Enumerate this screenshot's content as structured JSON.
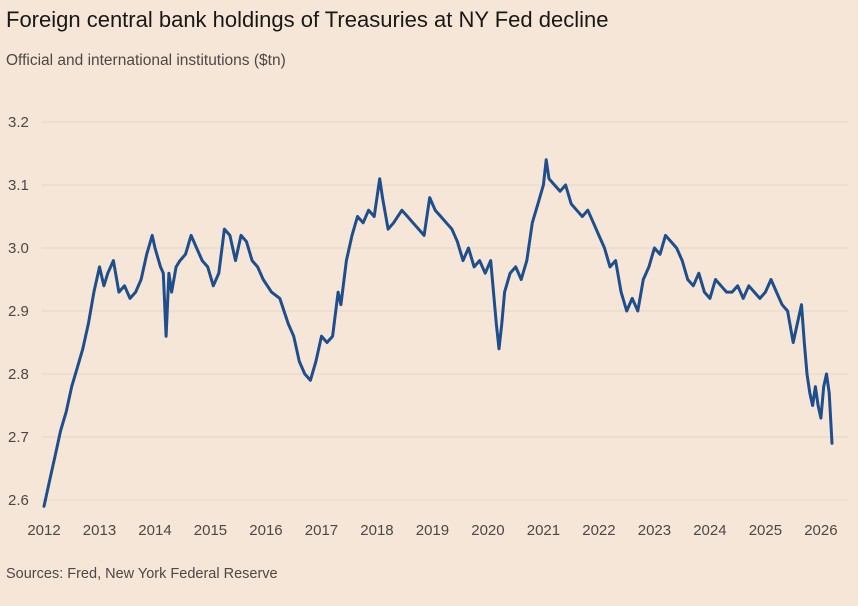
{
  "title": "Foreign central bank holdings of Treasuries at NY Fed decline",
  "subtitle": "Official and international institutions ($tn)",
  "source": "Sources: Fred, New York Federal Reserve",
  "colors": {
    "background": "#f5e6d8",
    "line": "#1f4e8c",
    "gridline": "#e6d5c6"
  },
  "chart_data": {
    "type": "line",
    "title": "Foreign central bank holdings of Treasuries at NY Fed decline",
    "ylabel": "Official and international institutions ($tn)",
    "xlabel": "",
    "ylim": [
      2.6,
      3.2
    ],
    "xlim": [
      2012.0,
      2026.2
    ],
    "yticks": [
      2.6,
      2.7,
      2.8,
      2.9,
      3.0,
      3.1,
      3.2
    ],
    "ytick_labels": [
      "2.6",
      "2.7",
      "2.8",
      "2.9",
      "3.0",
      "3.1",
      "3.2"
    ],
    "xticks": [
      2012,
      2013,
      2014,
      2015,
      2016,
      2017,
      2018,
      2019,
      2020,
      2021,
      2022,
      2023,
      2024,
      2025,
      2026
    ],
    "xtick_labels": [
      "2012",
      "2013",
      "2014",
      "2015",
      "2016",
      "2017",
      "2018",
      "2019",
      "2020",
      "2021",
      "2022",
      "2023",
      "2024",
      "2025",
      "2026"
    ],
    "grid": "horizontal",
    "legend": "none",
    "series": [
      {
        "x": [
          2012.0,
          2012.1,
          2012.2,
          2012.3,
          2012.4,
          2012.5,
          2012.6,
          2012.7,
          2012.8,
          2012.9,
          2013.0,
          2013.08,
          2013.15,
          2013.25,
          2013.35,
          2013.45,
          2013.55,
          2013.65,
          2013.75,
          2013.85,
          2013.95,
          2014.0,
          2014.1,
          2014.15,
          2014.2,
          2014.25,
          2014.3,
          2014.38,
          2014.45,
          2014.55,
          2014.65,
          2014.75,
          2014.85,
          2014.95,
          2015.05,
          2015.15,
          2015.25,
          2015.35,
          2015.45,
          2015.55,
          2015.65,
          2015.75,
          2015.85,
          2015.95,
          2016.1,
          2016.25,
          2016.4,
          2016.5,
          2016.6,
          2016.7,
          2016.8,
          2016.9,
          2017.0,
          2017.1,
          2017.2,
          2017.3,
          2017.35,
          2017.45,
          2017.55,
          2017.65,
          2017.75,
          2017.85,
          2017.95,
          2018.05,
          2018.1,
          2018.2,
          2018.3,
          2018.45,
          2018.55,
          2018.65,
          2018.75,
          2018.85,
          2018.95,
          2019.05,
          2019.15,
          2019.25,
          2019.35,
          2019.45,
          2019.55,
          2019.65,
          2019.75,
          2019.85,
          2019.95,
          2020.05,
          2020.15,
          2020.2,
          2020.25,
          2020.3,
          2020.4,
          2020.5,
          2020.6,
          2020.7,
          2020.8,
          2020.9,
          2021.0,
          2021.05,
          2021.1,
          2021.2,
          2021.3,
          2021.4,
          2021.5,
          2021.6,
          2021.7,
          2021.8,
          2021.9,
          2022.0,
          2022.1,
          2022.2,
          2022.3,
          2022.4,
          2022.5,
          2022.6,
          2022.7,
          2022.8,
          2022.9,
          2023.0,
          2023.1,
          2023.2,
          2023.3,
          2023.4,
          2023.5,
          2023.6,
          2023.7,
          2023.8,
          2023.9,
          2024.0,
          2024.1,
          2024.2,
          2024.3,
          2024.4,
          2024.5,
          2024.6,
          2024.7,
          2024.8,
          2024.9,
          2025.0,
          2025.1,
          2025.2,
          2025.3,
          2025.4,
          2025.5,
          2025.6,
          2025.65,
          2025.7,
          2025.75,
          2025.8,
          2025.85,
          2025.9,
          2025.95,
          2026.0,
          2026.05,
          2026.1,
          2026.15,
          2026.2
        ],
        "values": [
          2.59,
          2.63,
          2.67,
          2.71,
          2.74,
          2.78,
          2.81,
          2.84,
          2.88,
          2.93,
          2.97,
          2.94,
          2.96,
          2.98,
          2.93,
          2.94,
          2.92,
          2.93,
          2.95,
          2.99,
          3.02,
          3.0,
          2.97,
          2.96,
          2.86,
          2.96,
          2.93,
          2.97,
          2.98,
          2.99,
          3.02,
          3.0,
          2.98,
          2.97,
          2.94,
          2.96,
          3.03,
          3.02,
          2.98,
          3.02,
          3.01,
          2.98,
          2.97,
          2.95,
          2.93,
          2.92,
          2.88,
          2.86,
          2.82,
          2.8,
          2.79,
          2.82,
          2.86,
          2.85,
          2.86,
          2.93,
          2.91,
          2.98,
          3.02,
          3.05,
          3.04,
          3.06,
          3.05,
          3.11,
          3.08,
          3.03,
          3.04,
          3.06,
          3.05,
          3.04,
          3.03,
          3.02,
          3.08,
          3.06,
          3.05,
          3.04,
          3.03,
          3.01,
          2.98,
          3.0,
          2.97,
          2.98,
          2.96,
          2.98,
          2.88,
          2.84,
          2.88,
          2.93,
          2.96,
          2.97,
          2.95,
          2.98,
          3.04,
          3.07,
          3.1,
          3.14,
          3.11,
          3.1,
          3.09,
          3.1,
          3.07,
          3.06,
          3.05,
          3.06,
          3.04,
          3.02,
          3.0,
          2.97,
          2.98,
          2.93,
          2.9,
          2.92,
          2.9,
          2.95,
          2.97,
          3.0,
          2.99,
          3.02,
          3.01,
          3.0,
          2.98,
          2.95,
          2.94,
          2.96,
          2.93,
          2.92,
          2.95,
          2.94,
          2.93,
          2.93,
          2.94,
          2.92,
          2.94,
          2.93,
          2.92,
          2.93,
          2.95,
          2.93,
          2.91,
          2.9,
          2.85,
          2.89,
          2.91,
          2.85,
          2.8,
          2.77,
          2.75,
          2.78,
          2.75,
          2.73,
          2.78,
          2.8,
          2.77,
          2.69
        ]
      }
    ]
  }
}
